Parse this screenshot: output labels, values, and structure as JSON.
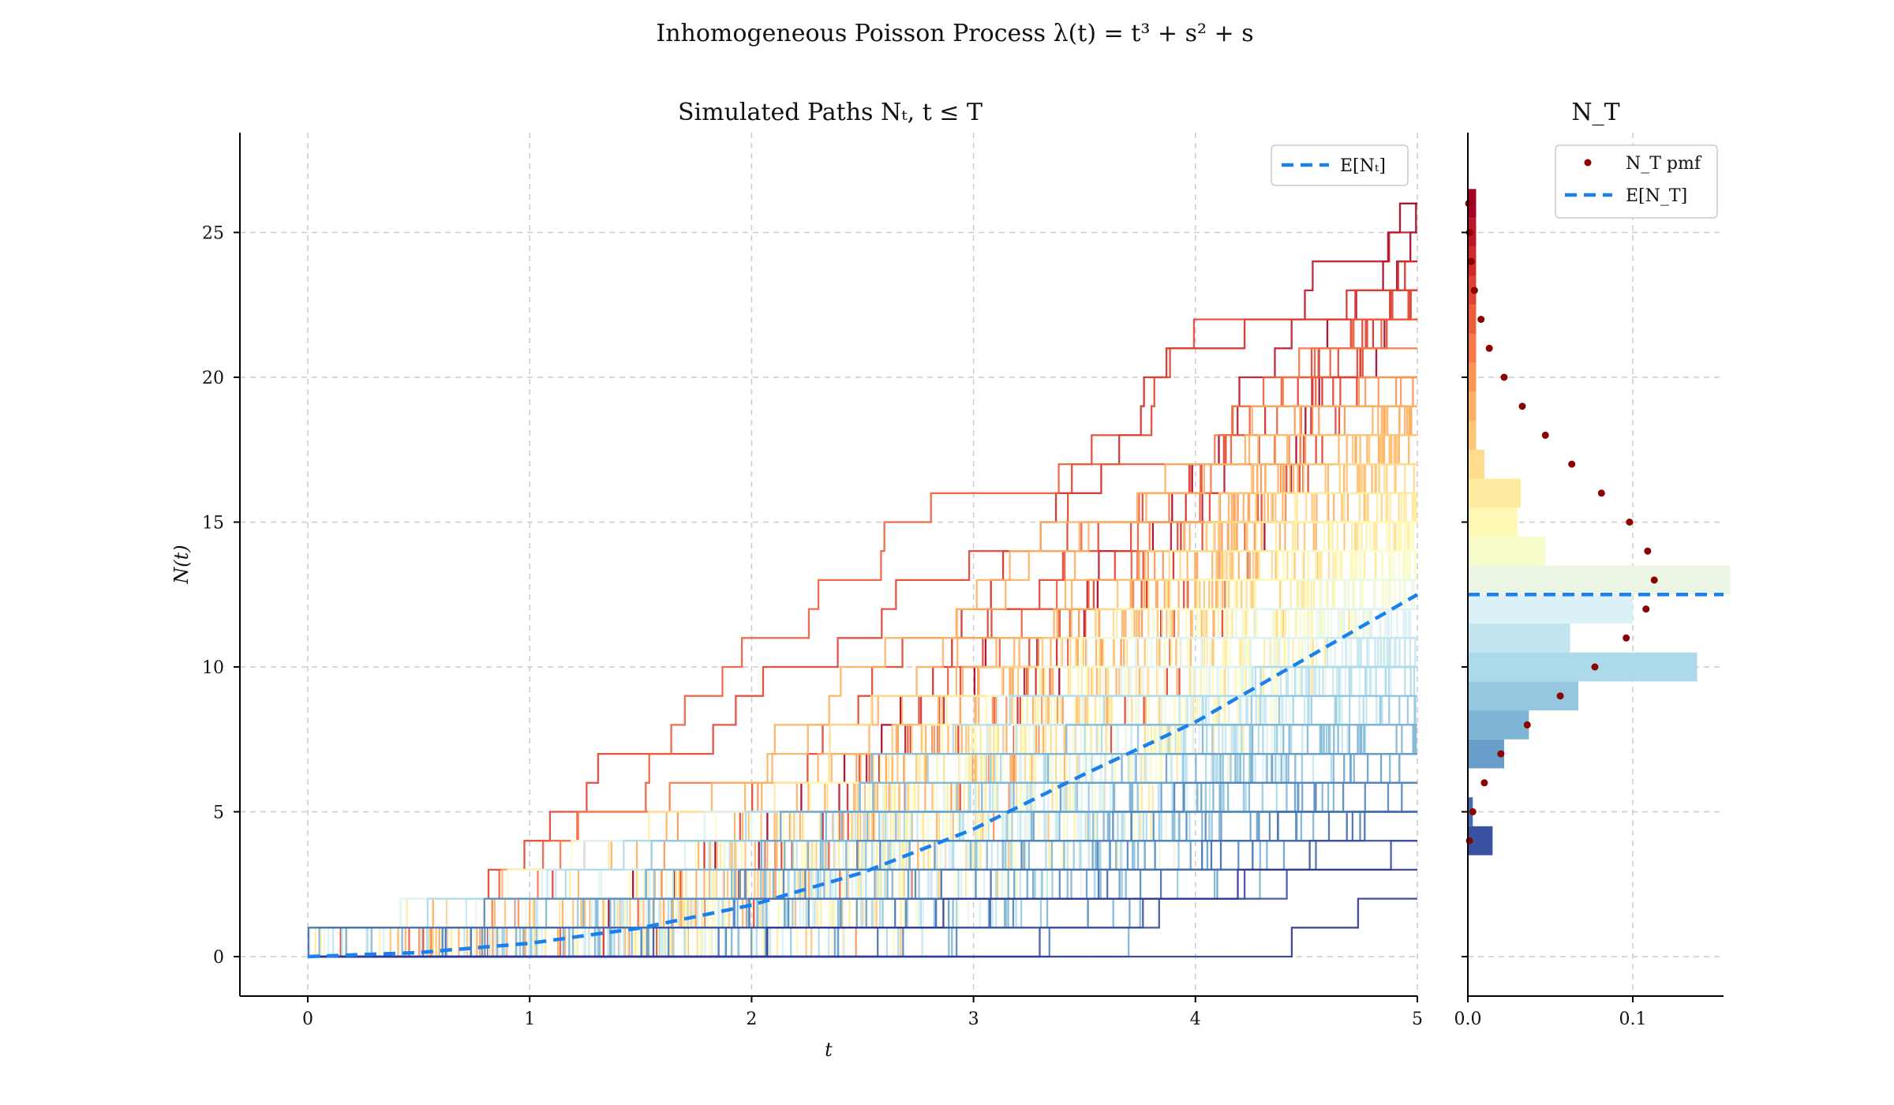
{
  "figure": {
    "suptitle": "Inhomogeneous Poisson Process λ(t) = t³ + s² + s"
  },
  "chart_data": [
    {
      "type": "line",
      "title": "Simulated Paths Nₜ, t ≤ T",
      "xlabel": "t",
      "ylabel": "N(t)",
      "xlim": [
        -0.31,
        5
      ],
      "ylim": [
        -1.35,
        28.4
      ],
      "xticks": [
        "0",
        "1",
        "2",
        "3",
        "4",
        "5"
      ],
      "yticks": [
        "0",
        "5",
        "10",
        "15",
        "20",
        "25"
      ],
      "grid": true,
      "legend_position": "top-right",
      "series": [
        {
          "name": "E[Nₜ]",
          "style": "dashed",
          "color": "#1a80f0",
          "x": [
            0,
            0.5,
            1,
            1.5,
            2,
            2.5,
            3,
            3.5,
            4,
            4.5,
            5
          ],
          "y": [
            0,
            0.14,
            0.46,
            0.99,
            1.78,
            2.9,
            4.4,
            6.3,
            8.1,
            10.3,
            12.5
          ]
        }
      ],
      "simulated_paths": {
        "description": "Many step paths colored by final count (RdYlBu colormap)",
        "final_count_range": [
          3,
          26
        ],
        "colormap_high": "#a50026",
        "colormap_low": "#313695"
      }
    },
    {
      "type": "bar",
      "orientation": "horizontal",
      "title": "N_T",
      "xticks": [
        "0.0",
        "0.1"
      ],
      "xlim": [
        0,
        0.155
      ],
      "legend_position": "top-right",
      "histogram": {
        "bins": [
          3.5,
          4.5,
          5.5,
          6.5,
          7.5,
          8.5,
          9.5,
          10.5,
          11.5,
          12.5,
          13.5,
          14.5,
          15.5,
          16.5,
          17.5,
          18.5,
          19.5,
          20.5,
          21.5,
          22.5,
          23.5,
          24.5,
          25.5
        ],
        "values": [
          0.015,
          0.003,
          0,
          0.022,
          0.037,
          0.067,
          0.139,
          0.062,
          0.1,
          0.159,
          0.047,
          0.03,
          0.032,
          0.01,
          0.005,
          0.005,
          0.005,
          0.005,
          0.005,
          0.005,
          0.005,
          0.005,
          0.005
        ]
      },
      "series": [
        {
          "name": "N_T pmf",
          "style": "points",
          "color": "#8b0000",
          "x": [
            4,
            5,
            6,
            7,
            8,
            9,
            10,
            11,
            12,
            13,
            14,
            15,
            16,
            17,
            18,
            19,
            20,
            21,
            22,
            23,
            24,
            25,
            26
          ],
          "y": [
            0.001,
            0.003,
            0.01,
            0.02,
            0.036,
            0.056,
            0.077,
            0.096,
            0.108,
            0.113,
            0.109,
            0.098,
            0.081,
            0.063,
            0.047,
            0.033,
            0.022,
            0.013,
            0.008,
            0.004,
            0.002,
            0.001,
            0.0005
          ]
        },
        {
          "name": "E[N_T]",
          "style": "dashed",
          "color": "#1a80f0",
          "y_value": 12.5
        }
      ]
    }
  ]
}
